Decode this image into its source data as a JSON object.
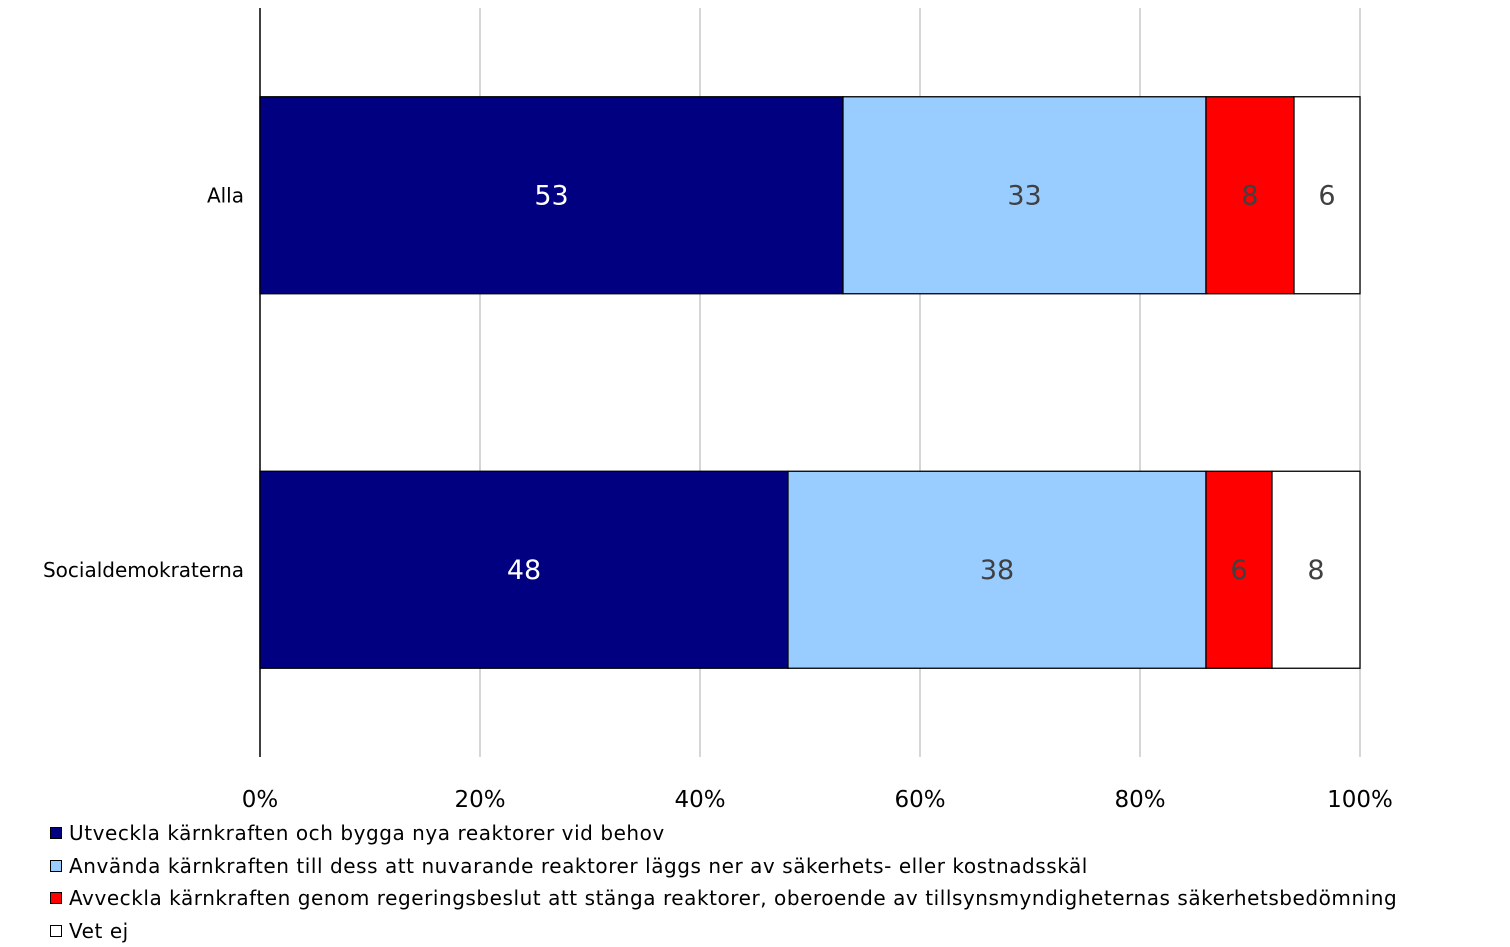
{
  "chart_data": {
    "type": "bar",
    "orientation": "horizontal",
    "stacked": "percent",
    "categories": [
      "Alla",
      "Socialdemokraterna"
    ],
    "series": [
      {
        "name": "Utveckla kärnkraften och bygga nya reaktorer vid behov",
        "values": [
          53,
          48
        ],
        "color": "#000080",
        "label_color": "#ffffff"
      },
      {
        "name": "Använda kärnkraften till dess att nuvarande reaktorer läggs ner av säkerhets- eller kostnadsskäl",
        "values": [
          33,
          38
        ],
        "color": "#99ccff",
        "label_color": "#404040"
      },
      {
        "name": "Avveckla kärnkraften genom regeringsbeslut att stänga reaktorer, oberoende av tillsynsmyndigheternas säkerhetsbedömning",
        "values": [
          8,
          6
        ],
        "color": "#ff0000",
        "label_color": "#404040"
      },
      {
        "name": "Vet ej",
        "values": [
          6,
          8
        ],
        "color": "#ffffff",
        "label_color": "#404040"
      }
    ],
    "x_ticks": [
      "0%",
      "20%",
      "40%",
      "60%",
      "80%",
      "100%"
    ],
    "xlim": [
      0,
      100
    ],
    "grid": "vertical",
    "legend_position": "bottom-left"
  }
}
